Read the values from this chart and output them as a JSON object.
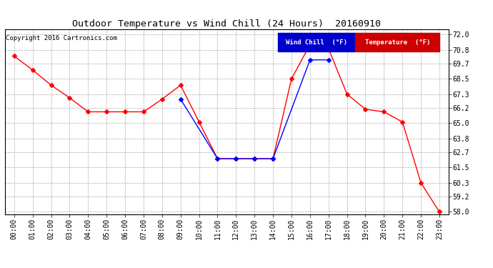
{
  "title": "Outdoor Temperature vs Wind Chill (24 Hours)  20160910",
  "copyright": "Copyright 2016 Cartronics.com",
  "legend_wind_chill": "Wind Chill  (°F)",
  "legend_temperature": "Temperature  (°F)",
  "hours": [
    "00:00",
    "01:00",
    "02:00",
    "03:00",
    "04:00",
    "05:00",
    "06:00",
    "07:00",
    "08:00",
    "09:00",
    "10:00",
    "11:00",
    "12:00",
    "13:00",
    "14:00",
    "15:00",
    "16:00",
    "17:00",
    "18:00",
    "19:00",
    "20:00",
    "21:00",
    "22:00",
    "23:00"
  ],
  "temperature": [
    70.3,
    69.2,
    68.0,
    67.0,
    65.9,
    65.9,
    65.9,
    65.9,
    66.9,
    68.0,
    65.1,
    62.2,
    62.2,
    62.2,
    62.2,
    68.5,
    71.2,
    70.9,
    67.3,
    66.1,
    65.9,
    65.1,
    60.3,
    58.0
  ],
  "wind_chill_x": [
    9,
    11,
    12,
    13,
    14,
    16,
    17
  ],
  "wind_chill_y": [
    66.9,
    62.2,
    62.2,
    62.2,
    62.2,
    70.0,
    70.0
  ],
  "temp_color": "#ff0000",
  "wind_color": "#0000ff",
  "bg_color": "#ffffff",
  "grid_color": "#aaaaaa",
  "ylim_min": 57.8,
  "ylim_max": 72.4,
  "yticks": [
    58.0,
    59.2,
    60.3,
    61.5,
    62.7,
    63.8,
    65.0,
    66.2,
    67.3,
    68.5,
    69.7,
    70.8,
    72.0
  ],
  "title_fontsize": 9.5,
  "tick_fontsize": 7,
  "copyright_fontsize": 6.5,
  "legend_fontsize": 6.5
}
